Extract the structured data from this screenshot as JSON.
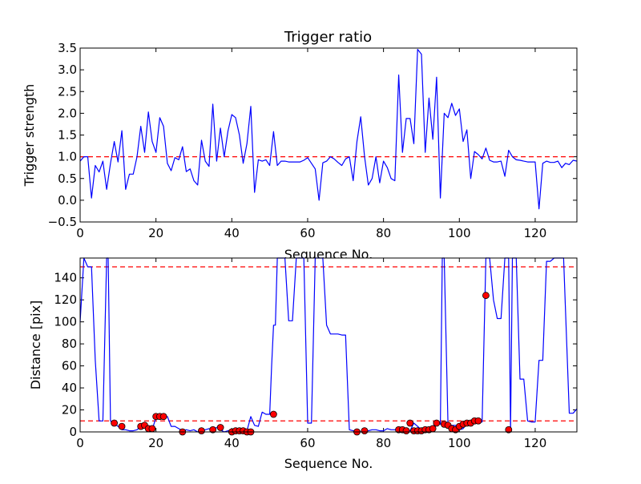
{
  "chart_data": [
    {
      "type": "line",
      "title": "Trigger ratio",
      "xlabel": "Sequence No.",
      "ylabel": "Trigger strength",
      "xlim": [
        0,
        131
      ],
      "ylim": [
        -0.5,
        3.5
      ],
      "xticks": [
        "0",
        "20",
        "40",
        "60",
        "80",
        "100",
        "120"
      ],
      "yticks": [
        "−0.5",
        "0.0",
        "0.5",
        "1.0",
        "1.5",
        "2.0",
        "2.5",
        "3.0",
        "3.5"
      ],
      "threshold": 1.0,
      "threshold_color": "#ff0000",
      "series": [
        {
          "color": "#0000ff",
          "x": [
            0,
            1,
            2,
            3,
            4,
            5,
            6,
            7,
            8,
            9,
            10,
            11,
            12,
            13,
            14,
            15,
            16,
            17,
            18,
            19,
            20,
            21,
            22,
            23,
            24,
            25,
            26,
            27,
            28,
            29,
            30,
            31,
            32,
            33,
            34,
            35,
            36,
            37,
            38,
            39,
            40,
            41,
            42,
            43,
            44,
            45,
            46,
            47,
            48,
            49,
            50,
            51,
            52,
            53,
            54,
            55,
            56,
            57,
            58,
            59,
            60,
            61,
            62,
            63,
            64,
            65,
            66,
            67,
            68,
            69,
            70,
            71,
            72,
            73,
            74,
            75,
            76,
            77,
            78,
            79,
            80,
            81,
            82,
            83,
            84,
            85,
            86,
            87,
            88,
            89,
            90,
            91,
            92,
            93,
            94,
            95,
            96,
            97,
            98,
            99,
            100,
            101,
            102,
            103,
            104,
            105,
            106,
            107,
            108,
            109,
            110,
            111,
            112,
            113,
            114,
            115,
            116,
            117,
            118,
            119,
            120,
            121,
            122,
            123,
            124,
            125,
            126,
            127,
            128,
            129,
            130,
            131
          ],
          "y": [
            0.9,
            1.0,
            1.0,
            0.05,
            0.8,
            0.65,
            0.9,
            0.25,
            0.85,
            1.35,
            0.88,
            1.6,
            0.25,
            0.6,
            0.6,
            1.0,
            1.7,
            1.1,
            2.03,
            1.35,
            1.1,
            1.9,
            1.7,
            0.85,
            0.68,
            0.98,
            0.93,
            1.23,
            0.66,
            0.72,
            0.45,
            0.35,
            1.38,
            0.9,
            0.78,
            2.21,
            0.9,
            1.66,
            1.0,
            1.6,
            1.97,
            1.9,
            1.5,
            0.85,
            1.3,
            2.16,
            0.18,
            0.93,
            0.9,
            0.93,
            0.8,
            1.58,
            0.8,
            0.9,
            0.9,
            0.88,
            0.88,
            0.88,
            0.88,
            0.92,
            0.98,
            0.85,
            0.72,
            0.0,
            0.86,
            0.9,
            1.0,
            0.95,
            0.87,
            0.8,
            0.95,
            1.0,
            0.45,
            1.35,
            1.92,
            1.0,
            0.35,
            0.5,
            1.0,
            0.4,
            0.9,
            0.75,
            0.5,
            0.45,
            2.88,
            1.1,
            1.88,
            1.88,
            1.3,
            3.47,
            3.36,
            1.1,
            2.35,
            1.4,
            2.83,
            0.05,
            2.0,
            1.9,
            2.23,
            1.95,
            2.1,
            1.35,
            1.62,
            0.5,
            1.12,
            1.05,
            0.95,
            1.2,
            0.92,
            0.88,
            0.88,
            0.9,
            0.55,
            1.15,
            1.0,
            0.93,
            0.92,
            0.9,
            0.88,
            0.88,
            0.88,
            -0.2,
            0.85,
            0.9,
            0.87,
            0.87,
            0.9,
            0.75,
            0.85,
            0.82,
            0.92,
            0.9
          ]
        }
      ]
    },
    {
      "type": "line",
      "title": "",
      "xlabel": "Sequence No.",
      "ylabel": "Distance [pix]",
      "xlim": [
        0,
        131
      ],
      "ylim": [
        0,
        158
      ],
      "xticks": [
        "0",
        "20",
        "40",
        "60",
        "80",
        "100",
        "120"
      ],
      "yticks": [
        "0",
        "20",
        "40",
        "60",
        "80",
        "100",
        "120",
        "140"
      ],
      "thresholds": [
        10,
        150
      ],
      "threshold_color": "#ff0000",
      "series": [
        {
          "color": "#0000ff",
          "x": [
            0,
            1,
            2,
            3,
            4,
            5,
            5.4,
            6,
            7,
            7.4,
            8,
            9,
            10,
            11,
            12,
            13,
            14,
            15,
            16,
            17,
            18,
            19,
            20,
            21,
            22,
            23,
            24,
            25,
            26,
            27,
            28,
            29,
            30,
            31,
            32,
            33,
            34,
            35,
            36,
            37,
            38,
            39,
            40,
            41,
            42,
            43,
            44,
            45,
            46,
            47,
            48,
            49,
            50,
            50.5,
            51,
            51.5,
            52,
            53,
            54,
            55,
            56,
            57,
            58,
            59,
            60,
            61,
            62,
            62.5,
            63,
            64,
            65,
            66,
            67,
            68,
            69,
            70,
            71,
            72,
            73,
            74,
            75,
            76,
            77,
            78,
            79,
            80,
            81,
            82,
            83,
            84,
            85,
            86,
            87,
            88,
            89,
            90,
            91,
            92,
            93,
            94,
            95,
            95.5,
            96,
            97,
            98,
            99,
            100,
            101,
            102,
            103,
            104,
            105,
            106,
            107,
            108,
            109,
            110,
            111,
            112,
            113,
            113.5,
            114,
            115,
            116,
            117,
            118,
            119,
            120,
            121,
            122,
            123,
            124,
            125,
            126,
            127,
            127.5,
            128,
            129,
            130,
            131
          ],
          "y": [
            100,
            158,
            150,
            150,
            65,
            10,
            10,
            10,
            158,
            158,
            10,
            8,
            5,
            2,
            2,
            1,
            1,
            2,
            5,
            5,
            4,
            2,
            13,
            13,
            14,
            14,
            5,
            5,
            3,
            1,
            2,
            1,
            2,
            0,
            1,
            2,
            3,
            2,
            4,
            2,
            0,
            1,
            2,
            1,
            2,
            1,
            1,
            14,
            6,
            5,
            18,
            16,
            16,
            60,
            97,
            97,
            158,
            158,
            158,
            101,
            101,
            158,
            158,
            158,
            8,
            8,
            158,
            158,
            158,
            158,
            97,
            89,
            89,
            89,
            88,
            88,
            2,
            1,
            0,
            0,
            2,
            1,
            2,
            2,
            1,
            1,
            3,
            2,
            2,
            2,
            1,
            3,
            1,
            8,
            5,
            2,
            3,
            2,
            5,
            8,
            7,
            158,
            158,
            7,
            6,
            6,
            2,
            3,
            8,
            8,
            10,
            9,
            9,
            158,
            158,
            120,
            103,
            103,
            158,
            158,
            2,
            158,
            158,
            48,
            48,
            10,
            9,
            9,
            65,
            65,
            155,
            155,
            158,
            158,
            158,
            158,
            110,
            17,
            17,
            21
          ]
        }
      ],
      "markers": {
        "color": "#ff0000",
        "x": [
          9,
          11,
          16,
          17,
          18,
          19,
          20,
          21,
          22,
          27,
          32,
          35,
          37,
          40,
          41,
          42,
          43,
          44,
          45,
          51,
          73,
          75,
          84,
          85,
          86,
          87,
          88,
          89,
          90,
          91,
          92,
          93,
          94,
          96,
          97,
          98,
          99,
          100,
          101,
          102,
          103,
          104,
          105,
          107,
          113
        ],
        "y": [
          8,
          5,
          5,
          6,
          3,
          3,
          14,
          14,
          14,
          0,
          1,
          2,
          4,
          0,
          1,
          1,
          1,
          0,
          0,
          16,
          0,
          1,
          2,
          2,
          1,
          8,
          1,
          1,
          1,
          2,
          2,
          3,
          8,
          7,
          6,
          3,
          2,
          5,
          7,
          8,
          8,
          10,
          10,
          124,
          2
        ]
      }
    }
  ]
}
